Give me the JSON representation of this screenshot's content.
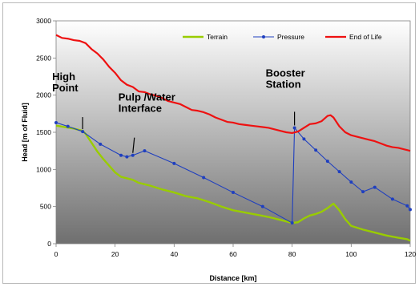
{
  "chart_data": {
    "type": "line",
    "title": "",
    "xlabel": "Distance [km]",
    "ylabel": "Head [m of Fluid]",
    "xlim": [
      0,
      120
    ],
    "ylim": [
      0,
      3000
    ],
    "x_ticks": [
      0,
      20,
      40,
      60,
      80,
      100,
      120
    ],
    "y_ticks": [
      0,
      500,
      1000,
      1500,
      2000,
      2500,
      3000
    ],
    "grid": false,
    "legend": "top-right",
    "series": [
      {
        "name": "Terrain",
        "color": "#99cc00",
        "marker": "none",
        "points": [
          [
            0,
            1590
          ],
          [
            3,
            1570
          ],
          [
            6,
            1550
          ],
          [
            9,
            1520
          ],
          [
            10,
            1480
          ],
          [
            12,
            1360
          ],
          [
            14,
            1240
          ],
          [
            16,
            1140
          ],
          [
            18,
            1050
          ],
          [
            20,
            960
          ],
          [
            22,
            900
          ],
          [
            24,
            880
          ],
          [
            26,
            860
          ],
          [
            28,
            820
          ],
          [
            32,
            780
          ],
          [
            36,
            730
          ],
          [
            40,
            690
          ],
          [
            44,
            640
          ],
          [
            48,
            610
          ],
          [
            52,
            560
          ],
          [
            56,
            500
          ],
          [
            60,
            450
          ],
          [
            64,
            420
          ],
          [
            68,
            390
          ],
          [
            72,
            360
          ],
          [
            76,
            320
          ],
          [
            80,
            280
          ],
          [
            82,
            290
          ],
          [
            84,
            340
          ],
          [
            86,
            380
          ],
          [
            88,
            400
          ],
          [
            90,
            430
          ],
          [
            92,
            480
          ],
          [
            94,
            540
          ],
          [
            96,
            450
          ],
          [
            98,
            330
          ],
          [
            100,
            240
          ],
          [
            104,
            190
          ],
          [
            108,
            150
          ],
          [
            112,
            110
          ],
          [
            116,
            80
          ],
          [
            119,
            60
          ],
          [
            120,
            40
          ]
        ]
      },
      {
        "name": "Pressure",
        "color": "#1f3fbf",
        "marker": "dot",
        "points": [
          [
            0,
            1630
          ],
          [
            4,
            1580
          ],
          [
            9,
            1510
          ],
          [
            15,
            1340
          ],
          [
            22,
            1190
          ],
          [
            24,
            1170
          ],
          [
            26,
            1190
          ],
          [
            30,
            1250
          ],
          [
            40,
            1080
          ],
          [
            50,
            890
          ],
          [
            60,
            690
          ],
          [
            70,
            500
          ],
          [
            80,
            280
          ],
          [
            80.8,
            1560
          ],
          [
            84,
            1410
          ],
          [
            88,
            1260
          ],
          [
            92,
            1110
          ],
          [
            96,
            970
          ],
          [
            100,
            830
          ],
          [
            104,
            700
          ],
          [
            108,
            760
          ],
          [
            114,
            600
          ],
          [
            119,
            510
          ],
          [
            120,
            460
          ]
        ]
      },
      {
        "name": "End of Life",
        "color": "#ee1111",
        "marker": "none",
        "points": [
          [
            0,
            2810
          ],
          [
            2,
            2770
          ],
          [
            4,
            2760
          ],
          [
            6,
            2740
          ],
          [
            8,
            2730
          ],
          [
            10,
            2700
          ],
          [
            12,
            2620
          ],
          [
            14,
            2560
          ],
          [
            16,
            2480
          ],
          [
            18,
            2380
          ],
          [
            20,
            2300
          ],
          [
            22,
            2200
          ],
          [
            24,
            2140
          ],
          [
            26,
            2110
          ],
          [
            28,
            2050
          ],
          [
            30,
            2040
          ],
          [
            32,
            2010
          ],
          [
            34,
            1990
          ],
          [
            36,
            1960
          ],
          [
            38,
            1920
          ],
          [
            40,
            1900
          ],
          [
            42,
            1880
          ],
          [
            44,
            1840
          ],
          [
            46,
            1800
          ],
          [
            48,
            1790
          ],
          [
            50,
            1770
          ],
          [
            52,
            1740
          ],
          [
            54,
            1700
          ],
          [
            56,
            1670
          ],
          [
            58,
            1640
          ],
          [
            60,
            1630
          ],
          [
            62,
            1610
          ],
          [
            64,
            1600
          ],
          [
            66,
            1590
          ],
          [
            68,
            1580
          ],
          [
            70,
            1570
          ],
          [
            72,
            1560
          ],
          [
            74,
            1540
          ],
          [
            76,
            1520
          ],
          [
            78,
            1500
          ],
          [
            80,
            1490
          ],
          [
            82,
            1510
          ],
          [
            84,
            1560
          ],
          [
            86,
            1610
          ],
          [
            88,
            1620
          ],
          [
            90,
            1650
          ],
          [
            92,
            1720
          ],
          [
            93,
            1730
          ],
          [
            94,
            1700
          ],
          [
            96,
            1580
          ],
          [
            98,
            1500
          ],
          [
            100,
            1460
          ],
          [
            102,
            1440
          ],
          [
            104,
            1420
          ],
          [
            106,
            1400
          ],
          [
            108,
            1380
          ],
          [
            110,
            1350
          ],
          [
            112,
            1320
          ],
          [
            114,
            1300
          ],
          [
            116,
            1290
          ],
          [
            118,
            1270
          ],
          [
            120,
            1250
          ]
        ]
      }
    ],
    "annotations": [
      {
        "lines": [
          "High",
          "Point"
        ],
        "x": 9,
        "y": 1510
      },
      {
        "lines": [
          "Pulp /Water",
          "Interface"
        ],
        "x": 26,
        "y": 1190
      },
      {
        "lines": [
          "Booster",
          "Station"
        ],
        "x": 80.8,
        "y": 1560
      }
    ]
  }
}
